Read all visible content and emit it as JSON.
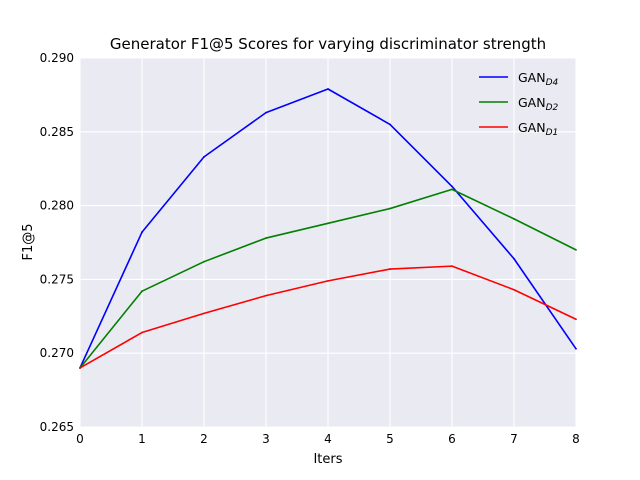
{
  "chart_data": {
    "type": "line",
    "title": "Generator F1@5 Scores for varying discriminator strength",
    "xlabel": "Iters",
    "ylabel": "F1@5",
    "x": [
      0,
      1,
      2,
      3,
      4,
      5,
      6,
      7,
      8
    ],
    "xlim": [
      0,
      8
    ],
    "ylim": [
      0.265,
      0.29
    ],
    "xticks": [
      "0",
      "1",
      "2",
      "3",
      "4",
      "5",
      "6",
      "7",
      "8"
    ],
    "yticks": [
      "0.265",
      "0.270",
      "0.275",
      "0.280",
      "0.285",
      "0.290"
    ],
    "grid": true,
    "legend_position": "top-right",
    "series": [
      {
        "name": "GAN",
        "subscript": "D4",
        "color": "#0000ff",
        "values": [
          0.269,
          0.2782,
          0.2833,
          0.2863,
          0.2879,
          0.2855,
          0.2813,
          0.2764,
          0.2703
        ]
      },
      {
        "name": "GAN",
        "subscript": "D2",
        "color": "#008000",
        "values": [
          0.269,
          0.2742,
          0.2762,
          0.2778,
          0.2788,
          0.2798,
          0.2811,
          0.2791,
          0.277
        ]
      },
      {
        "name": "GAN",
        "subscript": "D1",
        "color": "#ff0000",
        "values": [
          0.269,
          0.2714,
          0.2727,
          0.2739,
          0.2749,
          0.2757,
          0.2759,
          0.2743,
          0.2723
        ]
      }
    ]
  }
}
